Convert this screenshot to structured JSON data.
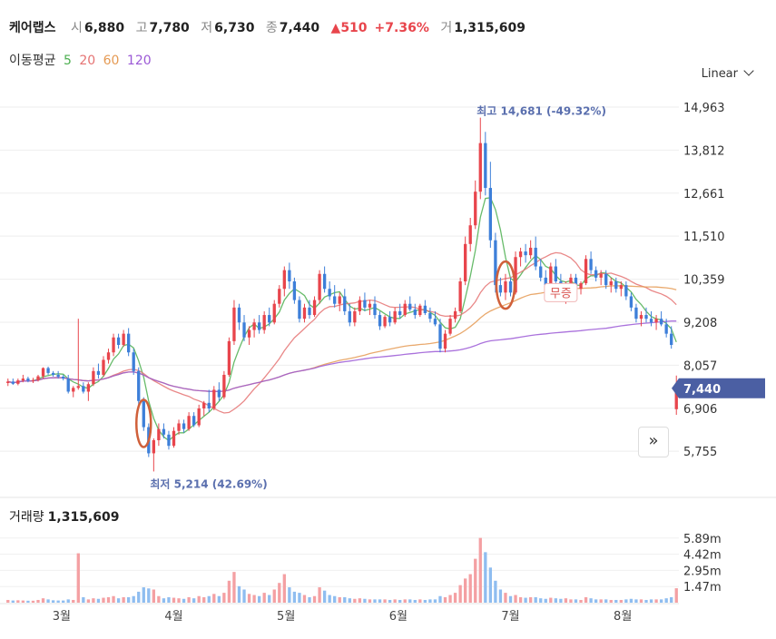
{
  "header": {
    "name": "케어랩스",
    "open_label": "시",
    "open": "6,880",
    "high_label": "고",
    "high": "7,780",
    "low_label": "저",
    "low": "6,730",
    "close_label": "종",
    "close": "7,440",
    "change": "▲510",
    "change_pct": "+7.36%",
    "volume_label": "거",
    "volume": "1,315,609"
  },
  "ma_legend": {
    "label": "이동평균",
    "periods": [
      {
        "text": "5",
        "color": "#4caf50"
      },
      {
        "text": "20",
        "color": "#e57373"
      },
      {
        "text": "60",
        "color": "#e59a54"
      },
      {
        "text": "120",
        "color": "#9b59d6"
      }
    ]
  },
  "scale_button": {
    "label": "Linear"
  },
  "volume_title": {
    "label": "거래량",
    "value": "1,315,609"
  },
  "colors": {
    "up": "#e8454c",
    "down": "#3d7fd9",
    "vol_up": "#f4a0a3",
    "vol_down": "#8fbdf0",
    "price_tag": "#4b5fa3"
  },
  "chart_data": {
    "type": "candlestick",
    "price_axis": {
      "ticks": [
        "14,963",
        "13,812",
        "12,661",
        "11,510",
        "10,359",
        "9,208",
        "8,057",
        "6,906",
        "5,755"
      ],
      "ylim": [
        5200,
        15400
      ]
    },
    "volume_axis": {
      "ticks": [
        "5.89m",
        "4.42m",
        "2.95m",
        "1.47m"
      ]
    },
    "x_ticks": [
      "3월",
      "4월",
      "5월",
      "6월",
      "7월",
      "8월"
    ],
    "current_price_label": "7,440",
    "high_marker": "최고 14,681 (-49.32%)",
    "low_marker": "최저 5,214 (42.69%)",
    "annotation": "무증",
    "candles": [
      [
        7580,
        7700,
        7500,
        7620,
        0.25
      ],
      [
        7620,
        7700,
        7530,
        7560,
        0.2
      ],
      [
        7560,
        7700,
        7520,
        7650,
        0.22
      ],
      [
        7650,
        7800,
        7600,
        7700,
        0.2
      ],
      [
        7700,
        7750,
        7600,
        7640,
        0.18
      ],
      [
        7640,
        7720,
        7580,
        7660,
        0.18
      ],
      [
        7660,
        7800,
        7620,
        7760,
        0.25
      ],
      [
        7760,
        8000,
        7700,
        7980,
        0.4
      ],
      [
        7980,
        8020,
        7800,
        7850,
        0.3
      ],
      [
        7850,
        7900,
        7750,
        7800,
        0.22
      ],
      [
        7800,
        7900,
        7700,
        7750,
        0.2
      ],
      [
        7750,
        7800,
        7650,
        7700,
        0.2
      ],
      [
        7700,
        7800,
        7300,
        7350,
        0.3
      ],
      [
        7350,
        7500,
        7200,
        7450,
        0.25
      ],
      [
        7450,
        9300,
        7400,
        7500,
        4.5
      ],
      [
        7500,
        7600,
        7300,
        7350,
        0.5
      ],
      [
        7350,
        7600,
        7100,
        7550,
        0.3
      ],
      [
        7550,
        8000,
        7500,
        7900,
        0.4
      ],
      [
        7900,
        8100,
        7700,
        7800,
        0.35
      ],
      [
        7800,
        8300,
        7750,
        8200,
        0.45
      ],
      [
        8200,
        8500,
        8100,
        8400,
        0.5
      ],
      [
        8400,
        8900,
        8300,
        8800,
        0.6
      ],
      [
        8800,
        8900,
        8500,
        8600,
        0.4
      ],
      [
        8600,
        9000,
        8550,
        8900,
        0.5
      ],
      [
        8900,
        9050,
        8300,
        8400,
        0.5
      ],
      [
        8400,
        8500,
        7800,
        7900,
        0.6
      ],
      [
        7900,
        8000,
        7000,
        7100,
        1.0
      ],
      [
        7100,
        7200,
        6300,
        6400,
        1.4
      ],
      [
        6400,
        6500,
        5600,
        5700,
        1.3
      ],
      [
        5700,
        6100,
        5214,
        6050,
        1.2
      ],
      [
        6050,
        6500,
        5900,
        6350,
        0.6
      ],
      [
        6350,
        6500,
        6100,
        6200,
        0.4
      ],
      [
        6200,
        6300,
        5800,
        5900,
        0.5
      ],
      [
        5900,
        6400,
        5850,
        6300,
        0.45
      ],
      [
        6300,
        6600,
        6200,
        6500,
        0.4
      ],
      [
        6500,
        6600,
        6250,
        6350,
        0.35
      ],
      [
        6350,
        6800,
        6300,
        6700,
        0.5
      ],
      [
        6700,
        6800,
        6400,
        6450,
        0.4
      ],
      [
        6450,
        7000,
        6400,
        6900,
        0.6
      ],
      [
        6900,
        7100,
        6700,
        7050,
        0.5
      ],
      [
        7050,
        7400,
        6800,
        6900,
        0.6
      ],
      [
        6900,
        7500,
        6850,
        7400,
        0.8
      ],
      [
        7400,
        7600,
        7100,
        7200,
        0.6
      ],
      [
        7200,
        7900,
        7150,
        7800,
        0.9
      ],
      [
        7800,
        8800,
        7750,
        8700,
        2.0
      ],
      [
        8700,
        9800,
        8600,
        9600,
        2.8
      ],
      [
        9600,
        9700,
        9000,
        9200,
        1.5
      ],
      [
        9200,
        9400,
        8700,
        8800,
        1.2
      ],
      [
        8800,
        9100,
        8600,
        9000,
        0.8
      ],
      [
        9000,
        9300,
        8800,
        9200,
        0.7
      ],
      [
        9200,
        9400,
        8900,
        9000,
        0.6
      ],
      [
        9000,
        9500,
        8900,
        9400,
        0.9
      ],
      [
        9400,
        9600,
        9100,
        9200,
        0.7
      ],
      [
        9200,
        9800,
        9150,
        9700,
        1.2
      ],
      [
        9700,
        10200,
        9600,
        10100,
        1.8
      ],
      [
        10100,
        10700,
        9900,
        10600,
        2.6
      ],
      [
        10600,
        10800,
        10100,
        10300,
        1.4
      ],
      [
        10300,
        10400,
        9700,
        9800,
        1.0
      ],
      [
        9800,
        9900,
        9200,
        9300,
        0.9
      ],
      [
        9300,
        9700,
        9200,
        9600,
        0.7
      ],
      [
        9600,
        9800,
        9300,
        9400,
        0.5
      ],
      [
        9400,
        9900,
        9350,
        9800,
        0.6
      ],
      [
        9800,
        10600,
        9700,
        10500,
        1.4
      ],
      [
        10500,
        10700,
        10000,
        10100,
        1.1
      ],
      [
        10100,
        10300,
        9800,
        9900,
        0.7
      ],
      [
        9900,
        10200,
        9600,
        9700,
        0.6
      ],
      [
        9700,
        10000,
        9500,
        9900,
        0.5
      ],
      [
        9900,
        10100,
        9400,
        9500,
        0.5
      ],
      [
        9500,
        9700,
        9100,
        9200,
        0.4
      ],
      [
        9200,
        9600,
        9100,
        9500,
        0.35
      ],
      [
        9500,
        9900,
        9400,
        9800,
        0.4
      ],
      [
        9800,
        10000,
        9500,
        9600,
        0.35
      ],
      [
        9600,
        9800,
        9400,
        9700,
        0.3
      ],
      [
        9700,
        9900,
        9300,
        9400,
        0.3
      ],
      [
        9400,
        9500,
        9000,
        9100,
        0.3
      ],
      [
        9100,
        9400,
        9050,
        9350,
        0.3
      ],
      [
        9350,
        9500,
        9100,
        9200,
        0.25
      ],
      [
        9200,
        9600,
        9150,
        9500,
        0.3
      ],
      [
        9500,
        9700,
        9300,
        9400,
        0.25
      ],
      [
        9400,
        9800,
        9350,
        9700,
        0.3
      ],
      [
        9700,
        9900,
        9500,
        9550,
        0.3
      ],
      [
        9550,
        9700,
        9300,
        9400,
        0.25
      ],
      [
        9400,
        9700,
        9350,
        9650,
        0.3
      ],
      [
        9650,
        9800,
        9400,
        9450,
        0.25
      ],
      [
        9450,
        9600,
        9200,
        9300,
        0.3
      ],
      [
        9300,
        9500,
        9100,
        9150,
        0.3
      ],
      [
        9150,
        9300,
        8400,
        8500,
        0.6
      ],
      [
        8500,
        9000,
        8400,
        8900,
        0.5
      ],
      [
        8900,
        9400,
        8850,
        9300,
        0.7
      ],
      [
        9300,
        9600,
        9200,
        9500,
        0.9
      ],
      [
        9500,
        10400,
        9450,
        10300,
        1.6
      ],
      [
        10300,
        11500,
        10200,
        11300,
        2.2
      ],
      [
        11300,
        12000,
        11100,
        11800,
        2.6
      ],
      [
        11800,
        13000,
        11700,
        12700,
        4.0
      ],
      [
        12700,
        14681,
        12500,
        14000,
        5.9
      ],
      [
        14000,
        14300,
        12600,
        12800,
        4.6
      ],
      [
        12800,
        13500,
        11200,
        11400,
        3.2
      ],
      [
        11400,
        11600,
        10000,
        10200,
        2.0
      ],
      [
        10200,
        10400,
        9900,
        10000,
        1.2
      ],
      [
        10000,
        10500,
        9800,
        10300,
        0.9
      ],
      [
        10300,
        10400,
        9900,
        10000,
        0.6
      ],
      [
        10000,
        11100,
        9950,
        10950,
        0.7
      ],
      [
        10950,
        11200,
        10700,
        11100,
        0.5
      ],
      [
        11100,
        11300,
        10800,
        11000,
        0.45
      ],
      [
        11000,
        11400,
        10900,
        11200,
        0.5
      ],
      [
        11200,
        11500,
        10600,
        10700,
        0.5
      ],
      [
        10700,
        10900,
        10300,
        10400,
        0.4
      ],
      [
        10400,
        10600,
        10100,
        10200,
        0.35
      ],
      [
        10200,
        10800,
        10150,
        10700,
        0.45
      ],
      [
        10700,
        10900,
        10200,
        10300,
        0.4
      ],
      [
        10300,
        10500,
        9900,
        10000,
        0.35
      ],
      [
        10000,
        10300,
        9700,
        10200,
        0.4
      ],
      [
        10200,
        10500,
        10000,
        10400,
        0.3
      ],
      [
        10400,
        10500,
        10000,
        10100,
        0.3
      ],
      [
        10100,
        10300,
        9950,
        10250,
        0.25
      ],
      [
        10250,
        11000,
        10200,
        10900,
        0.5
      ],
      [
        10900,
        11100,
        10500,
        10600,
        0.4
      ],
      [
        10600,
        10700,
        10300,
        10400,
        0.3
      ],
      [
        10400,
        10600,
        10200,
        10500,
        0.3
      ],
      [
        10500,
        10600,
        10100,
        10200,
        0.3
      ],
      [
        10200,
        10400,
        10000,
        10300,
        0.25
      ],
      [
        10300,
        10400,
        10000,
        10100,
        0.25
      ],
      [
        10100,
        10300,
        9900,
        10200,
        0.25
      ],
      [
        10200,
        10300,
        9800,
        9900,
        0.3
      ],
      [
        9900,
        10000,
        9500,
        9600,
        0.35
      ],
      [
        9600,
        9700,
        9200,
        9300,
        0.3
      ],
      [
        9300,
        9500,
        9100,
        9400,
        0.3
      ],
      [
        9400,
        9600,
        9200,
        9300,
        0.25
      ],
      [
        9300,
        9500,
        9100,
        9200,
        0.3
      ],
      [
        9200,
        9400,
        9000,
        9300,
        0.3
      ],
      [
        9300,
        9500,
        9100,
        9150,
        0.3
      ],
      [
        9150,
        9300,
        8800,
        8900,
        0.4
      ],
      [
        8900,
        9100,
        8500,
        8600,
        0.5
      ],
      [
        6880,
        7780,
        6730,
        7440,
        1.3156
      ]
    ]
  }
}
